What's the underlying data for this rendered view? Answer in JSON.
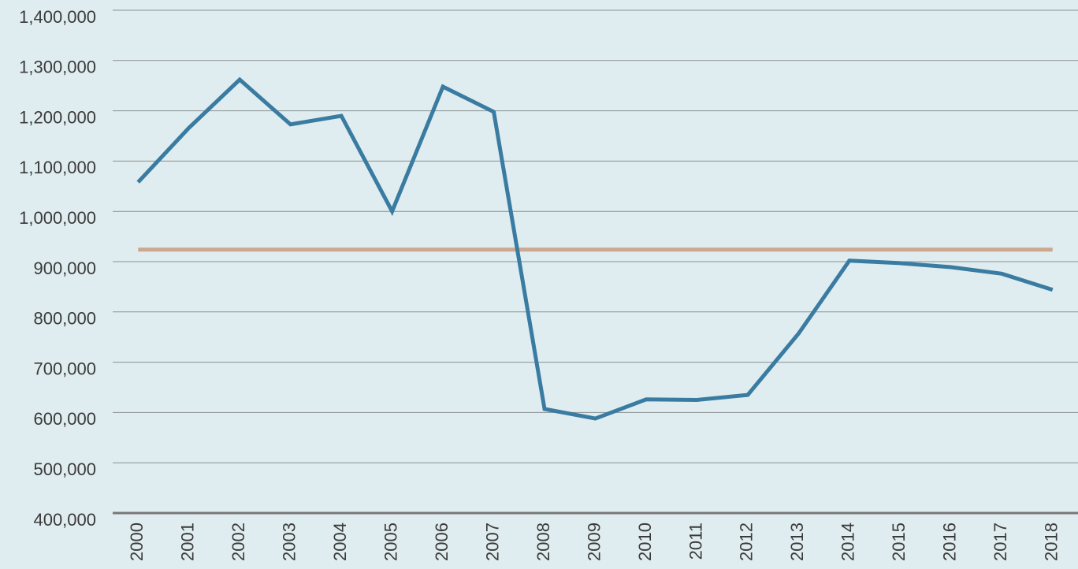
{
  "chart_data": {
    "type": "line",
    "categories": [
      "2000",
      "2001",
      "2002",
      "2003",
      "2004",
      "2005",
      "2006",
      "2007",
      "2008",
      "2009",
      "2010",
      "2011",
      "2012",
      "2013",
      "2014",
      "2015",
      "2016",
      "2017",
      "2018"
    ],
    "series": [
      {
        "color": "#3a7ca1",
        "values": [
          1058000,
          1166000,
          1262000,
          1173000,
          1190000,
          1000000,
          1248000,
          1198000,
          607000,
          588000,
          626000,
          625000,
          635000,
          757000,
          902000,
          897000,
          889000,
          876000,
          844000
        ]
      },
      {
        "color": "#cca88e",
        "values": [
          924000,
          924000,
          924000,
          924000,
          924000,
          924000,
          924000,
          924000,
          924000,
          924000,
          924000,
          924000,
          924000,
          924000,
          924000,
          924000,
          924000,
          924000,
          924000
        ]
      }
    ],
    "ylim": [
      400000,
      1400000
    ],
    "yticks": [
      {
        "value": 400000,
        "label": "400,000"
      },
      {
        "value": 500000,
        "label": "500,000"
      },
      {
        "value": 600000,
        "label": "600,000"
      },
      {
        "value": 700000,
        "label": "700,000"
      },
      {
        "value": 800000,
        "label": "800,000"
      },
      {
        "value": 900000,
        "label": "900,000"
      },
      {
        "value": 1000000,
        "label": "1,000,000"
      },
      {
        "value": 1100000,
        "label": "1,100,000"
      },
      {
        "value": 1200000,
        "label": "1,200,000"
      },
      {
        "value": 1300000,
        "label": "1,300,000"
      },
      {
        "value": 1400000,
        "label": "1,400,000"
      }
    ],
    "grid": true
  }
}
